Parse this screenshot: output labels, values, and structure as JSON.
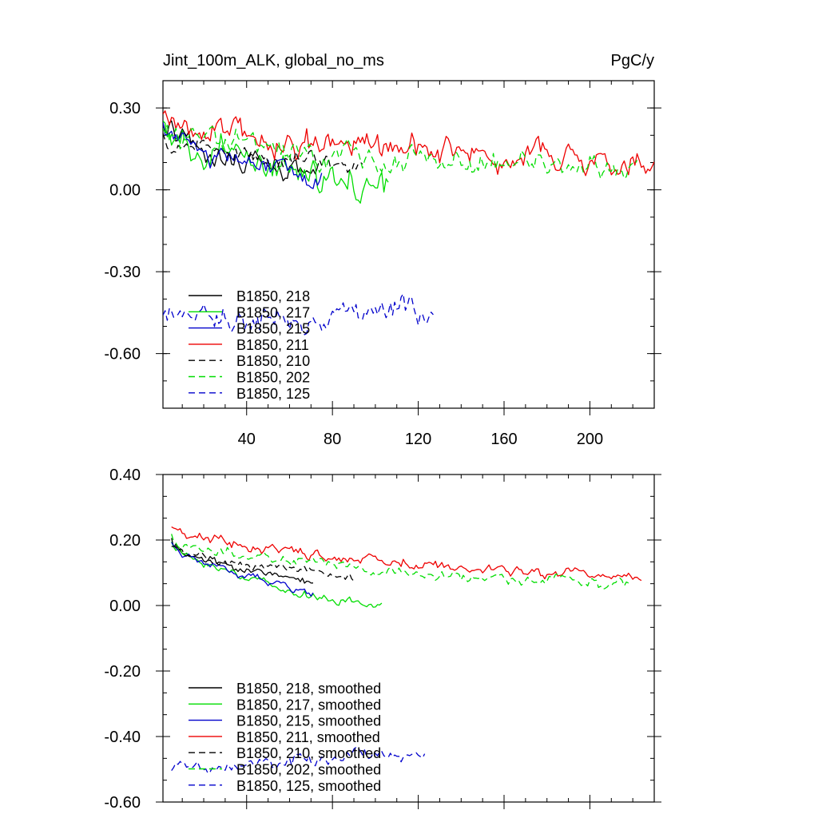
{
  "figure": {
    "title_left": "Jint_100m_ALK, global_no_ms",
    "title_right": "PgC/y"
  },
  "chart_data": [
    {
      "type": "line",
      "title": "Jint_100m_ALK, global_no_ms",
      "units": "PgC/y",
      "xlim": [
        1,
        230
      ],
      "ylim": [
        -0.8,
        0.4
      ],
      "xticks": [
        40,
        80,
        120,
        160,
        200
      ],
      "xtick_labels": [
        "40",
        "80",
        "120",
        "160",
        "200"
      ],
      "yticks": [
        0.3,
        0.0,
        -0.3,
        -0.6
      ],
      "ytick_labels": [
        "0.30",
        "0.00",
        "-0.30",
        "-0.60"
      ],
      "legend_position": "lower-left",
      "series": [
        {
          "name": "B1850, 218",
          "color": "#000000",
          "dash": "solid",
          "start": 1,
          "end": 73,
          "v0": 0.25,
          "v1": 0.05,
          "noise": 0.035
        },
        {
          "name": "B1850, 217",
          "color": "#00dd00",
          "dash": "solid",
          "start": 1,
          "end": 106,
          "v0": 0.22,
          "v1": 0.0,
          "noise": 0.045
        },
        {
          "name": "B1850, 215",
          "color": "#0000cc",
          "dash": "solid",
          "start": 1,
          "end": 75,
          "v0": 0.23,
          "v1": 0.06,
          "noise": 0.03
        },
        {
          "name": "B1850, 211",
          "color": "#ee0000",
          "dash": "solid",
          "start": 1,
          "end": 230,
          "v0": 0.26,
          "v1": 0.09,
          "noise": 0.04
        },
        {
          "name": "B1850, 210",
          "color": "#000000",
          "dash": "dashed",
          "start": 1,
          "end": 94,
          "v0": 0.2,
          "v1": 0.09,
          "noise": 0.025
        },
        {
          "name": "B1850, 202",
          "color": "#00dd00",
          "dash": "dashed",
          "start": 1,
          "end": 222,
          "v0": 0.22,
          "v1": 0.07,
          "noise": 0.035
        },
        {
          "name": "B1850, 125",
          "color": "#0000cc",
          "dash": "dashed",
          "start": 1,
          "end": 127,
          "v0": -0.5,
          "v1": -0.45,
          "noise": 0.04
        }
      ]
    },
    {
      "type": "line",
      "xlim": [
        1,
        230
      ],
      "ylim": [
        -0.6,
        0.4
      ],
      "xticks": [
        40,
        80,
        120,
        160,
        200
      ],
      "yticks": [
        0.4,
        0.2,
        0.0,
        -0.2,
        -0.4,
        -0.6
      ],
      "ytick_labels": [
        "0.40",
        "0.20",
        "0.00",
        "-0.20",
        "-0.40",
        "-0.60"
      ],
      "legend_position": "lower-left",
      "series": [
        {
          "name": "B1850, 218, smoothed",
          "color": "#000000",
          "dash": "solid",
          "start": 5,
          "end": 71,
          "v0": 0.21,
          "v1": 0.07,
          "noise": 0.01
        },
        {
          "name": "B1850, 217, smoothed",
          "color": "#00dd00",
          "dash": "solid",
          "start": 5,
          "end": 103,
          "v0": 0.2,
          "v1": 0.0,
          "noise": 0.01
        },
        {
          "name": "B1850, 215, smoothed",
          "color": "#0000cc",
          "dash": "solid",
          "start": 5,
          "end": 71,
          "v0": 0.2,
          "v1": 0.05,
          "noise": 0.01
        },
        {
          "name": "B1850, 211, smoothed",
          "color": "#ee0000",
          "dash": "solid",
          "start": 5,
          "end": 224,
          "v0": 0.25,
          "v1": 0.08,
          "noise": 0.012
        },
        {
          "name": "B1850, 210, smoothed",
          "color": "#000000",
          "dash": "dashed",
          "start": 5,
          "end": 90,
          "v0": 0.19,
          "v1": 0.09,
          "noise": 0.01
        },
        {
          "name": "B1850, 202, smoothed",
          "color": "#00dd00",
          "dash": "dashed",
          "start": 5,
          "end": 218,
          "v0": 0.22,
          "v1": 0.06,
          "noise": 0.012
        },
        {
          "name": "B1850, 125, smoothed",
          "color": "#0000cc",
          "dash": "dashed",
          "start": 5,
          "end": 123,
          "v0": -0.5,
          "v1": -0.46,
          "noise": 0.015
        }
      ]
    }
  ]
}
